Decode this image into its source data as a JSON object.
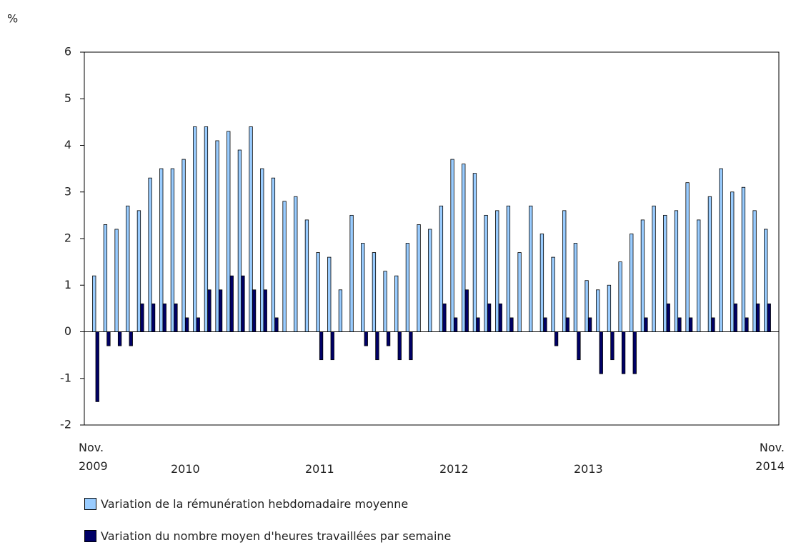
{
  "chart_data": {
    "type": "bar",
    "y_unit": "%",
    "categories": [
      "Nov. 2009",
      null,
      null,
      null,
      null,
      null,
      null,
      null,
      "2010",
      null,
      null,
      null,
      null,
      null,
      null,
      null,
      null,
      null,
      null,
      null,
      "2011",
      null,
      null,
      null,
      null,
      null,
      null,
      null,
      null,
      null,
      null,
      null,
      "2012",
      null,
      null,
      null,
      null,
      null,
      null,
      null,
      null,
      null,
      null,
      null,
      "2013",
      null,
      null,
      null,
      null,
      null,
      null,
      null,
      null,
      null,
      null,
      null,
      null,
      null,
      null,
      null,
      "Nov. 2014"
    ],
    "series": [
      {
        "name": "Variation de la rémunération hebdomadaire moyenne",
        "color": "#99ccff",
        "values": [
          1.2,
          2.3,
          2.2,
          2.7,
          2.6,
          3.3,
          3.5,
          3.5,
          3.7,
          4.4,
          4.4,
          4.1,
          4.3,
          3.9,
          4.4,
          3.5,
          3.3,
          2.8,
          2.9,
          2.4,
          1.7,
          1.6,
          0.9,
          2.5,
          1.9,
          1.7,
          1.3,
          1.2,
          1.9,
          2.3,
          2.2,
          2.7,
          3.7,
          3.6,
          3.4,
          2.5,
          2.6,
          2.7,
          1.7,
          2.7,
          2.1,
          1.6,
          2.6,
          1.9,
          1.1,
          0.9,
          1.0,
          1.5,
          2.1,
          2.4,
          2.7,
          2.5,
          2.6,
          3.2,
          2.4,
          2.9,
          3.5,
          3.0,
          3.1,
          2.6,
          2.2
        ]
      },
      {
        "name": "Variation du nombre moyen d'heures travaillées par semaine",
        "color": "#000066",
        "values": [
          -1.5,
          -0.3,
          -0.3,
          -0.3,
          0.6,
          0.6,
          0.6,
          0.6,
          0.3,
          0.3,
          0.9,
          0.9,
          1.2,
          1.2,
          0.9,
          0.9,
          0.3,
          0,
          0,
          0,
          -0.6,
          -0.6,
          0,
          0,
          -0.3,
          -0.6,
          -0.3,
          -0.6,
          -0.6,
          0,
          0,
          0.6,
          0.3,
          0.9,
          0.3,
          0.6,
          0.6,
          0.3,
          0,
          0,
          0.3,
          -0.3,
          0.3,
          -0.6,
          0.3,
          -0.9,
          -0.6,
          -0.9,
          -0.9,
          0.3,
          0,
          0.6,
          0.3,
          0.3,
          0,
          0.3,
          0,
          0.6,
          0.3,
          0.6,
          0.6
        ]
      }
    ],
    "ylim": [
      -2,
      6
    ],
    "yticks": [
      -2,
      -1,
      0,
      1,
      2,
      3,
      4,
      5,
      6
    ]
  }
}
